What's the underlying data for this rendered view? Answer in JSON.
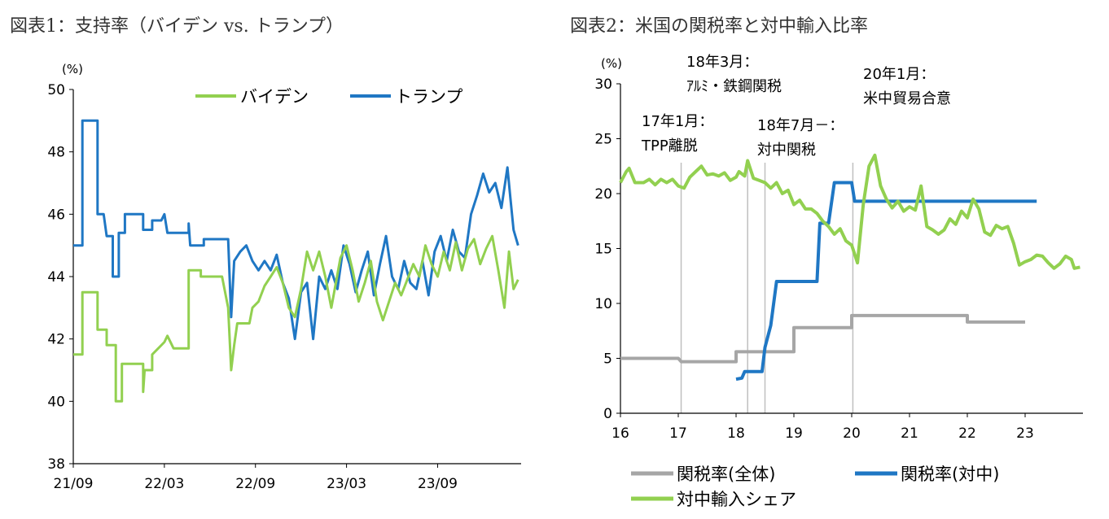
{
  "figure1": {
    "title": "図表1：支持率（バイデン vs. トランプ）",
    "chart_data": {
      "type": "line",
      "unit_label": "(%)",
      "ylim": [
        38,
        50
      ],
      "yticks": [
        "38",
        "40",
        "42",
        "44",
        "46",
        "48",
        "50"
      ],
      "xticks": [
        "21/09",
        "22/03",
        "22/09",
        "23/03",
        "23/09"
      ],
      "xtick_months": [
        0,
        6,
        12,
        18,
        24
      ],
      "xlim_months": [
        0,
        29.5
      ],
      "legend_position": "top-right",
      "series": [
        {
          "name": "バイデン",
          "color": "#92d050",
          "points": [
            [
              0,
              41.5
            ],
            [
              0.6,
              41.5
            ],
            [
              0.6,
              43.5
            ],
            [
              1.6,
              43.5
            ],
            [
              1.6,
              42.3
            ],
            [
              2.2,
              42.3
            ],
            [
              2.2,
              41.8
            ],
            [
              2.8,
              41.8
            ],
            [
              2.8,
              40.0
            ],
            [
              3.2,
              40.0
            ],
            [
              3.2,
              41.2
            ],
            [
              4.6,
              41.2
            ],
            [
              4.6,
              40.3
            ],
            [
              4.7,
              41.0
            ],
            [
              5.2,
              41.0
            ],
            [
              5.2,
              41.5
            ],
            [
              5.6,
              41.7
            ],
            [
              6.0,
              41.9
            ],
            [
              6.2,
              42.1
            ],
            [
              6.6,
              41.7
            ],
            [
              7.6,
              41.7
            ],
            [
              7.6,
              44.2
            ],
            [
              8.4,
              44.2
            ],
            [
              8.4,
              44.0
            ],
            [
              9.8,
              44.0
            ],
            [
              10.2,
              43.0
            ],
            [
              10.4,
              41.0
            ],
            [
              10.6,
              41.8
            ],
            [
              10.8,
              42.5
            ],
            [
              11.6,
              42.5
            ],
            [
              11.8,
              43.0
            ],
            [
              12.2,
              43.2
            ],
            [
              12.6,
              43.7
            ],
            [
              13.0,
              44.0
            ],
            [
              13.4,
              44.3
            ],
            [
              13.8,
              43.8
            ],
            [
              14.2,
              43.0
            ],
            [
              14.6,
              42.7
            ],
            [
              15.0,
              43.6
            ],
            [
              15.4,
              44.8
            ],
            [
              15.8,
              44.2
            ],
            [
              16.2,
              44.8
            ],
            [
              16.6,
              44.0
            ],
            [
              17.0,
              43.0
            ],
            [
              17.3,
              43.8
            ],
            [
              17.6,
              44.6
            ],
            [
              18.0,
              45.0
            ],
            [
              18.4,
              44.2
            ],
            [
              18.8,
              43.2
            ],
            [
              19.2,
              43.8
            ],
            [
              19.6,
              44.5
            ],
            [
              20.0,
              43.2
            ],
            [
              20.4,
              42.6
            ],
            [
              20.8,
              43.2
            ],
            [
              21.2,
              43.8
            ],
            [
              21.6,
              43.4
            ],
            [
              22.0,
              43.9
            ],
            [
              22.4,
              44.4
            ],
            [
              22.8,
              44.0
            ],
            [
              23.2,
              45.0
            ],
            [
              23.6,
              44.4
            ],
            [
              24.0,
              44.0
            ],
            [
              24.4,
              44.8
            ],
            [
              24.8,
              44.2
            ],
            [
              25.2,
              45.1
            ],
            [
              25.6,
              44.2
            ],
            [
              26.0,
              44.9
            ],
            [
              26.4,
              45.2
            ],
            [
              26.8,
              44.4
            ],
            [
              27.2,
              44.9
            ],
            [
              27.6,
              45.3
            ],
            [
              28.0,
              44.2
            ],
            [
              28.4,
              43.0
            ],
            [
              28.7,
              44.8
            ],
            [
              29.0,
              43.6
            ],
            [
              29.3,
              43.9
            ]
          ]
        },
        {
          "name": "トランプ",
          "color": "#1f77c4",
          "points": [
            [
              0,
              45.0
            ],
            [
              0.6,
              45.0
            ],
            [
              0.6,
              49.0
            ],
            [
              1.6,
              49.0
            ],
            [
              1.6,
              46.0
            ],
            [
              2.0,
              46.0
            ],
            [
              2.2,
              45.3
            ],
            [
              2.6,
              45.3
            ],
            [
              2.6,
              44.0
            ],
            [
              3.0,
              44.0
            ],
            [
              3.0,
              45.4
            ],
            [
              3.4,
              45.4
            ],
            [
              3.4,
              46.0
            ],
            [
              4.6,
              46.0
            ],
            [
              4.6,
              45.5
            ],
            [
              5.2,
              45.5
            ],
            [
              5.2,
              45.8
            ],
            [
              5.8,
              45.8
            ],
            [
              6.0,
              46.0
            ],
            [
              6.2,
              45.4
            ],
            [
              7.6,
              45.4
            ],
            [
              7.6,
              45.7
            ],
            [
              7.7,
              45.0
            ],
            [
              8.6,
              45.0
            ],
            [
              8.6,
              45.2
            ],
            [
              10.2,
              45.2
            ],
            [
              10.4,
              42.7
            ],
            [
              10.6,
              44.5
            ],
            [
              11.0,
              44.8
            ],
            [
              11.4,
              45.0
            ],
            [
              11.8,
              44.5
            ],
            [
              12.2,
              44.2
            ],
            [
              12.6,
              44.5
            ],
            [
              13.0,
              44.2
            ],
            [
              13.4,
              44.7
            ],
            [
              13.8,
              43.8
            ],
            [
              14.2,
              43.3
            ],
            [
              14.6,
              42.0
            ],
            [
              15.0,
              43.5
            ],
            [
              15.4,
              43.8
            ],
            [
              15.8,
              42.0
            ],
            [
              16.2,
              44.0
            ],
            [
              16.6,
              43.6
            ],
            [
              17.0,
              44.2
            ],
            [
              17.4,
              43.6
            ],
            [
              17.8,
              45.0
            ],
            [
              18.2,
              44.4
            ],
            [
              18.6,
              43.5
            ],
            [
              19.0,
              44.2
            ],
            [
              19.4,
              44.8
            ],
            [
              19.8,
              43.4
            ],
            [
              20.2,
              44.4
            ],
            [
              20.6,
              45.3
            ],
            [
              21.0,
              44.0
            ],
            [
              21.4,
              43.6
            ],
            [
              21.8,
              44.5
            ],
            [
              22.2,
              43.8
            ],
            [
              22.6,
              43.6
            ],
            [
              23.0,
              44.5
            ],
            [
              23.4,
              43.4
            ],
            [
              23.8,
              44.8
            ],
            [
              24.2,
              45.3
            ],
            [
              24.6,
              44.5
            ],
            [
              25.0,
              45.5
            ],
            [
              25.4,
              44.8
            ],
            [
              25.8,
              44.6
            ],
            [
              26.2,
              46.0
            ],
            [
              26.6,
              46.6
            ],
            [
              27.0,
              47.3
            ],
            [
              27.4,
              46.7
            ],
            [
              27.8,
              47.0
            ],
            [
              28.2,
              46.2
            ],
            [
              28.6,
              47.5
            ],
            [
              28.8,
              46.5
            ],
            [
              29.0,
              45.5
            ],
            [
              29.3,
              45.0
            ]
          ]
        }
      ]
    }
  },
  "figure2": {
    "title": "図表2：米国の関税率と対中輸入比率",
    "chart_data": {
      "type": "line",
      "unit_label": "(%)",
      "ylim": [
        0,
        30
      ],
      "yticks": [
        "0",
        "5",
        "10",
        "15",
        "20",
        "25",
        "30"
      ],
      "xticks": [
        "16",
        "17",
        "18",
        "19",
        "20",
        "21",
        "22",
        "23"
      ],
      "xtick_values": [
        16,
        17,
        18,
        19,
        20,
        21,
        22,
        23
      ],
      "xlim": [
        16,
        24
      ],
      "event_lines": [
        17.05,
        18.2,
        18.5,
        20.02
      ],
      "annotations": [
        {
          "year": 17.05,
          "line1": "17年1月：",
          "line2": "TPP離脱"
        },
        {
          "year": 18.2,
          "line1": "18年3月：",
          "line2": "ｱﾙﾐ・鉄鋼関税"
        },
        {
          "year": 18.5,
          "line1": "18年7月－：",
          "line2": "対中関税"
        },
        {
          "year": 20.02,
          "line1": "20年1月：",
          "line2": "米中貿易合意"
        }
      ],
      "series": [
        {
          "name": "関税率(全体)",
          "color": "#a6a6a6",
          "points": [
            [
              16.0,
              5.0
            ],
            [
              17.0,
              5.0
            ],
            [
              17.05,
              4.7
            ],
            [
              18.0,
              4.7
            ],
            [
              18.0,
              5.6
            ],
            [
              19.0,
              5.6
            ],
            [
              19.0,
              7.8
            ],
            [
              20.0,
              7.8
            ],
            [
              20.0,
              8.9
            ],
            [
              22.0,
              8.9
            ],
            [
              22.0,
              8.3
            ],
            [
              23.0,
              8.3
            ]
          ]
        },
        {
          "name": "関税率(対中)",
          "color": "#1f77c4",
          "points": [
            [
              18.0,
              3.1
            ],
            [
              18.1,
              3.2
            ],
            [
              18.15,
              3.8
            ],
            [
              18.45,
              3.8
            ],
            [
              18.5,
              6.0
            ],
            [
              18.6,
              8.0
            ],
            [
              18.7,
              12.0
            ],
            [
              19.4,
              12.0
            ],
            [
              19.45,
              17.3
            ],
            [
              19.6,
              17.3
            ],
            [
              19.7,
              21.0
            ],
            [
              20.0,
              21.0
            ],
            [
              20.05,
              19.3
            ],
            [
              23.2,
              19.3
            ]
          ]
        },
        {
          "name": "対中輸入シェア",
          "color": "#92d050",
          "points": [
            [
              16.0,
              21.0
            ],
            [
              16.1,
              22.0
            ],
            [
              16.15,
              22.3
            ],
            [
              16.25,
              21.0
            ],
            [
              16.4,
              21.0
            ],
            [
              16.5,
              21.3
            ],
            [
              16.6,
              20.8
            ],
            [
              16.7,
              21.3
            ],
            [
              16.8,
              21.0
            ],
            [
              16.9,
              21.3
            ],
            [
              17.0,
              20.7
            ],
            [
              17.1,
              20.5
            ],
            [
              17.2,
              21.5
            ],
            [
              17.3,
              22.0
            ],
            [
              17.4,
              22.5
            ],
            [
              17.5,
              21.7
            ],
            [
              17.6,
              21.8
            ],
            [
              17.7,
              21.6
            ],
            [
              17.8,
              21.9
            ],
            [
              17.9,
              21.2
            ],
            [
              18.0,
              21.5
            ],
            [
              18.05,
              22.0
            ],
            [
              18.15,
              21.6
            ],
            [
              18.2,
              23.0
            ],
            [
              18.3,
              21.4
            ],
            [
              18.4,
              21.2
            ],
            [
              18.5,
              21.0
            ],
            [
              18.6,
              20.5
            ],
            [
              18.7,
              21.0
            ],
            [
              18.8,
              20.0
            ],
            [
              18.9,
              20.3
            ],
            [
              19.0,
              19.0
            ],
            [
              19.1,
              19.4
            ],
            [
              19.2,
              18.6
            ],
            [
              19.3,
              18.6
            ],
            [
              19.4,
              18.2
            ],
            [
              19.5,
              17.5
            ],
            [
              19.6,
              17.0
            ],
            [
              19.7,
              16.3
            ],
            [
              19.8,
              16.8
            ],
            [
              19.9,
              15.7
            ],
            [
              20.0,
              15.3
            ],
            [
              20.1,
              13.7
            ],
            [
              20.2,
              19.0
            ],
            [
              20.3,
              22.5
            ],
            [
              20.4,
              23.5
            ],
            [
              20.5,
              20.7
            ],
            [
              20.6,
              19.5
            ],
            [
              20.7,
              18.7
            ],
            [
              20.8,
              19.3
            ],
            [
              20.9,
              18.4
            ],
            [
              21.0,
              18.8
            ],
            [
              21.1,
              18.5
            ],
            [
              21.2,
              20.7
            ],
            [
              21.3,
              17.0
            ],
            [
              21.4,
              16.7
            ],
            [
              21.5,
              16.3
            ],
            [
              21.6,
              16.7
            ],
            [
              21.7,
              17.7
            ],
            [
              21.8,
              17.2
            ],
            [
              21.9,
              18.4
            ],
            [
              22.0,
              17.8
            ],
            [
              22.1,
              19.5
            ],
            [
              22.2,
              18.6
            ],
            [
              22.3,
              16.5
            ],
            [
              22.4,
              16.2
            ],
            [
              22.5,
              17.1
            ],
            [
              22.6,
              16.8
            ],
            [
              22.7,
              17.0
            ],
            [
              22.8,
              15.5
            ],
            [
              22.9,
              13.5
            ],
            [
              23.0,
              13.8
            ],
            [
              23.1,
              14.0
            ],
            [
              23.2,
              14.4
            ],
            [
              23.3,
              14.3
            ],
            [
              23.4,
              13.7
            ],
            [
              23.5,
              13.2
            ],
            [
              23.6,
              13.6
            ],
            [
              23.7,
              14.3
            ],
            [
              23.8,
              14.0
            ],
            [
              23.85,
              13.2
            ],
            [
              23.95,
              13.3
            ]
          ]
        }
      ]
    }
  }
}
